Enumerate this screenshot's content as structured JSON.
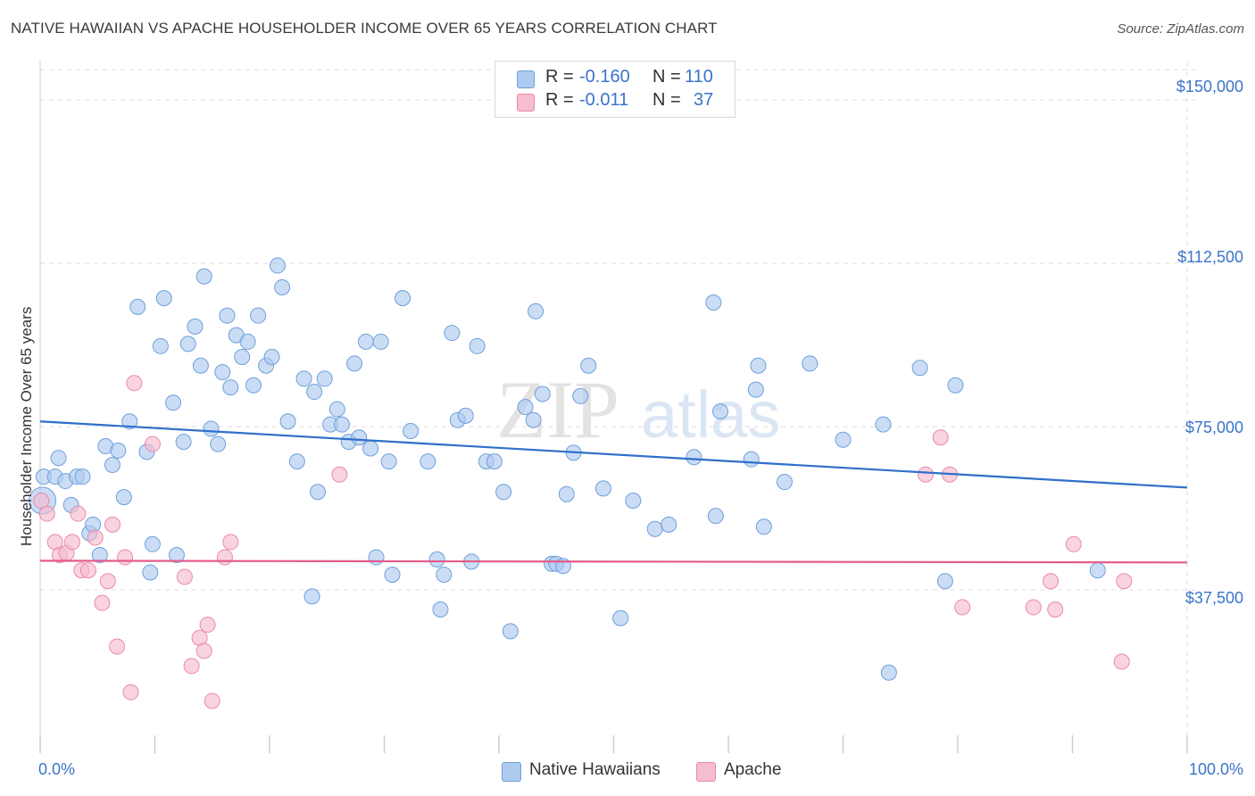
{
  "title": "NATIVE HAWAIIAN VS APACHE HOUSEHOLDER INCOME OVER 65 YEARS CORRELATION CHART",
  "source": "Source: ZipAtlas.com",
  "watermark": {
    "zip": "ZIP",
    "atlas": "atlas"
  },
  "legend": {
    "rows": [
      {
        "r_label": "R =",
        "r_value": "-0.160",
        "n_label": "N =",
        "n_value": "110",
        "color": "#aecbef"
      },
      {
        "r_label": "R =",
        "r_value": "-0.011",
        "n_label": "N =",
        "n_value": "37",
        "color": "#f6bcd0"
      }
    ]
  },
  "bottom_legend": {
    "series_a": "Native Hawaiians",
    "series_b": "Apache"
  },
  "colors": {
    "blue_fill": "#aecbef",
    "blue_stroke": "#6f9fdb",
    "blue_line": "#2f6fcb",
    "pink_fill": "#f6bcd0",
    "pink_stroke": "#e98aab",
    "pink_line": "#e45a8a",
    "tick_text": "#3a74c9",
    "grid": "#dddddd"
  },
  "chart_data": {
    "type": "scatter",
    "title": "NATIVE HAWAIIAN VS APACHE HOUSEHOLDER INCOME OVER 65 YEARS CORRELATION CHART",
    "xlabel": "",
    "ylabel": "Householder Income Over 65 years",
    "xlim": [
      0,
      100
    ],
    "ylim": [
      0,
      157000
    ],
    "x_tick_labels": [
      "0.0%",
      "100.0%"
    ],
    "y_ticks": [
      37500,
      75000,
      112500,
      150000
    ],
    "y_tick_labels": [
      "$37,500",
      "$75,000",
      "$112,500",
      "$150,000"
    ],
    "grid": true,
    "legend_position": "top-center",
    "series": [
      {
        "name": "Native Hawaiians",
        "r": -0.16,
        "n": 110,
        "trend": {
          "x": [
            0,
            100
          ],
          "y": [
            76200,
            61000
          ]
        },
        "points": [
          [
            0.2,
            58000
          ],
          [
            0.3,
            63500
          ],
          [
            1.3,
            63500
          ],
          [
            1.6,
            67800
          ],
          [
            2.2,
            62500
          ],
          [
            2.7,
            57000
          ],
          [
            3.2,
            63500
          ],
          [
            3.7,
            63500
          ],
          [
            4.3,
            50500
          ],
          [
            4.6,
            52500
          ],
          [
            5.2,
            45500
          ],
          [
            5.7,
            70500
          ],
          [
            6.3,
            66200
          ],
          [
            6.8,
            69500
          ],
          [
            7.3,
            58800
          ],
          [
            7.8,
            76200
          ],
          [
            8.5,
            102500
          ],
          [
            9.3,
            69200
          ],
          [
            9.6,
            41500
          ],
          [
            9.8,
            48000
          ],
          [
            10.5,
            93500
          ],
          [
            10.8,
            104500
          ],
          [
            11.6,
            80500
          ],
          [
            11.9,
            45500
          ],
          [
            12.5,
            71500
          ],
          [
            12.9,
            94000
          ],
          [
            13.5,
            98000
          ],
          [
            14.0,
            89000
          ],
          [
            14.3,
            109500
          ],
          [
            14.9,
            74500
          ],
          [
            15.5,
            71000
          ],
          [
            15.9,
            87500
          ],
          [
            16.3,
            100500
          ],
          [
            16.6,
            84000
          ],
          [
            17.1,
            96000
          ],
          [
            17.6,
            91000
          ],
          [
            18.1,
            94500
          ],
          [
            18.6,
            84500
          ],
          [
            19.0,
            100500
          ],
          [
            19.7,
            89000
          ],
          [
            20.2,
            91000
          ],
          [
            20.7,
            112000
          ],
          [
            21.1,
            107000
          ],
          [
            21.6,
            76200
          ],
          [
            22.4,
            67000
          ],
          [
            23.0,
            86000
          ],
          [
            23.7,
            36000
          ],
          [
            23.9,
            83000
          ],
          [
            24.2,
            60000
          ],
          [
            24.8,
            86000
          ],
          [
            25.3,
            75500
          ],
          [
            25.9,
            79000
          ],
          [
            26.3,
            75500
          ],
          [
            26.9,
            71500
          ],
          [
            27.4,
            89500
          ],
          [
            27.8,
            72500
          ],
          [
            28.4,
            94500
          ],
          [
            28.8,
            70000
          ],
          [
            29.3,
            45000
          ],
          [
            29.7,
            94500
          ],
          [
            30.4,
            67000
          ],
          [
            30.7,
            41000
          ],
          [
            31.6,
            104500
          ],
          [
            32.3,
            74000
          ],
          [
            33.8,
            67000
          ],
          [
            34.6,
            44500
          ],
          [
            34.9,
            33000
          ],
          [
            35.2,
            41000
          ],
          [
            35.9,
            96500
          ],
          [
            36.4,
            76500
          ],
          [
            37.1,
            77500
          ],
          [
            37.6,
            44000
          ],
          [
            38.1,
            93500
          ],
          [
            38.9,
            67000
          ],
          [
            39.6,
            67000
          ],
          [
            40.4,
            60000
          ],
          [
            41.0,
            28000
          ],
          [
            42.3,
            79500
          ],
          [
            43.0,
            76500
          ],
          [
            43.2,
            101500
          ],
          [
            43.8,
            82500
          ],
          [
            44.6,
            43500
          ],
          [
            45.0,
            43500
          ],
          [
            45.6,
            43000
          ],
          [
            45.9,
            59500
          ],
          [
            46.5,
            69000
          ],
          [
            47.1,
            82000
          ],
          [
            47.8,
            89000
          ],
          [
            49.1,
            60800
          ],
          [
            50.6,
            31000
          ],
          [
            51.7,
            58000
          ],
          [
            53.6,
            51500
          ],
          [
            54.8,
            52500
          ],
          [
            57.0,
            68000
          ],
          [
            58.7,
            103500
          ],
          [
            58.9,
            54500
          ],
          [
            59.3,
            78500
          ],
          [
            62.0,
            67500
          ],
          [
            62.4,
            83500
          ],
          [
            62.6,
            89000
          ],
          [
            63.1,
            52000
          ],
          [
            64.9,
            62300
          ],
          [
            67.1,
            89500
          ],
          [
            70.0,
            72000
          ],
          [
            73.5,
            75500
          ],
          [
            74.0,
            18500
          ],
          [
            76.7,
            88500
          ],
          [
            78.9,
            39500
          ],
          [
            79.8,
            84500
          ],
          [
            92.2,
            42000
          ]
        ]
      },
      {
        "name": "Apache",
        "r": -0.011,
        "n": 37,
        "trend": {
          "x": [
            0,
            100
          ],
          "y": [
            44200,
            43800
          ]
        },
        "points": [
          [
            0.6,
            55000
          ],
          [
            1.3,
            48500
          ],
          [
            1.7,
            45500
          ],
          [
            2.3,
            46000
          ],
          [
            2.8,
            48500
          ],
          [
            3.3,
            55000
          ],
          [
            3.6,
            42000
          ],
          [
            4.2,
            42000
          ],
          [
            4.8,
            49500
          ],
          [
            5.4,
            34500
          ],
          [
            5.9,
            39500
          ],
          [
            6.3,
            52500
          ],
          [
            6.7,
            24500
          ],
          [
            7.4,
            45000
          ],
          [
            7.9,
            14000
          ],
          [
            8.2,
            85000
          ],
          [
            9.8,
            71000
          ],
          [
            12.6,
            40500
          ],
          [
            13.2,
            20000
          ],
          [
            13.9,
            26500
          ],
          [
            14.3,
            23500
          ],
          [
            14.6,
            29500
          ],
          [
            15.0,
            12000
          ],
          [
            16.1,
            45000
          ],
          [
            16.6,
            48500
          ],
          [
            26.1,
            64000
          ],
          [
            77.2,
            64000
          ],
          [
            78.5,
            72500
          ],
          [
            79.3,
            64000
          ],
          [
            80.4,
            33500
          ],
          [
            86.6,
            33500
          ],
          [
            88.1,
            39500
          ],
          [
            88.5,
            33000
          ],
          [
            90.1,
            48000
          ],
          [
            94.3,
            21000
          ],
          [
            94.5,
            39500
          ],
          [
            0.1,
            58000
          ]
        ]
      }
    ]
  }
}
